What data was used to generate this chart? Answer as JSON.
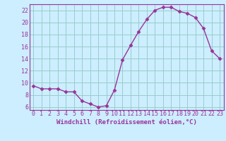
{
  "x": [
    0,
    1,
    2,
    3,
    4,
    5,
    6,
    7,
    8,
    9,
    10,
    11,
    12,
    13,
    14,
    15,
    16,
    17,
    18,
    19,
    20,
    21,
    22,
    23
  ],
  "y": [
    9.5,
    9.0,
    9.0,
    9.0,
    8.5,
    8.5,
    7.0,
    6.5,
    6.0,
    6.2,
    8.8,
    13.8,
    16.2,
    18.5,
    20.5,
    22.0,
    22.5,
    22.5,
    21.8,
    21.5,
    20.8,
    19.0,
    15.3,
    14.0
  ],
  "line_color": "#993399",
  "marker": "D",
  "marker_size": 2.5,
  "bg_color": "#cceeff",
  "grid_color": "#99cccc",
  "tick_color": "#993399",
  "label_color": "#993399",
  "xlabel": "Windchill (Refroidissement éolien,°C)",
  "yticks": [
    6,
    8,
    10,
    12,
    14,
    16,
    18,
    20,
    22
  ],
  "xticks": [
    0,
    1,
    2,
    3,
    4,
    5,
    6,
    7,
    8,
    9,
    10,
    11,
    12,
    13,
    14,
    15,
    16,
    17,
    18,
    19,
    20,
    21,
    22,
    23
  ],
  "xlabel_fontsize": 6.5,
  "tick_fontsize": 6.0
}
